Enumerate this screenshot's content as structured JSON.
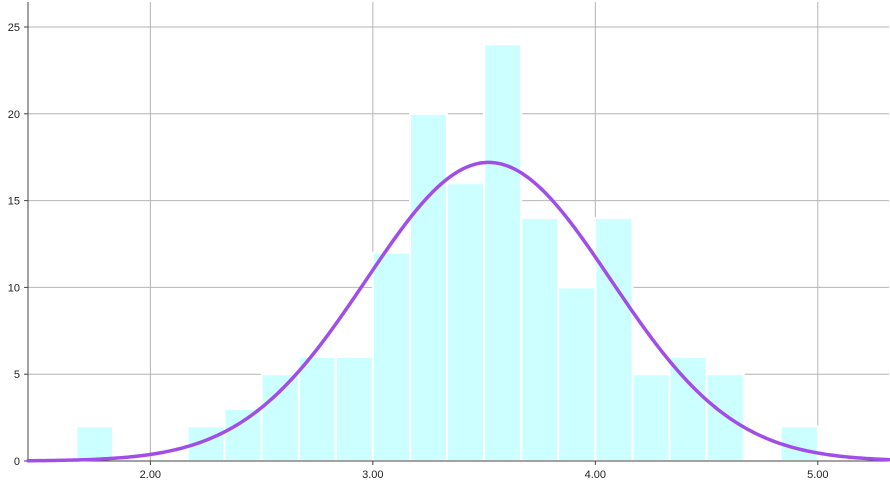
{
  "chart_data": {
    "type": "bar",
    "subtype": "histogram",
    "x_bin_edges": [
      1.667,
      1.833,
      2.0,
      2.167,
      2.333,
      2.5,
      2.667,
      2.833,
      3.0,
      3.167,
      3.333,
      3.5,
      3.667,
      3.833,
      4.0,
      4.167,
      4.333,
      4.5,
      4.667,
      4.833,
      5.0
    ],
    "values": [
      2,
      0,
      0,
      2,
      3,
      5,
      6,
      6,
      12,
      20,
      16,
      24,
      14,
      10,
      14,
      5,
      6,
      5,
      0,
      2
    ],
    "xlim": [
      1.45,
      5.32
    ],
    "ylim": [
      0,
      26
    ],
    "x_ticks": [
      "2.00",
      "3.00",
      "4.00",
      "5.00"
    ],
    "x_tick_values": [
      2.0,
      3.0,
      4.0,
      5.0
    ],
    "y_ticks": [
      "0",
      "5",
      "10",
      "15",
      "20",
      "25"
    ],
    "y_tick_values": [
      0,
      5,
      10,
      15,
      20,
      25
    ],
    "normal_curve": {
      "mean": 3.52,
      "sd": 0.55,
      "peak": 17.2
    },
    "grid": true,
    "title": "",
    "xlabel": "",
    "ylabel": "",
    "colors": {
      "bar_fill": "#ccffff",
      "bar_stroke": "#ffffff",
      "curve": "#a14ee8",
      "grid": "#b4b4b4",
      "axis": "#444444"
    }
  }
}
